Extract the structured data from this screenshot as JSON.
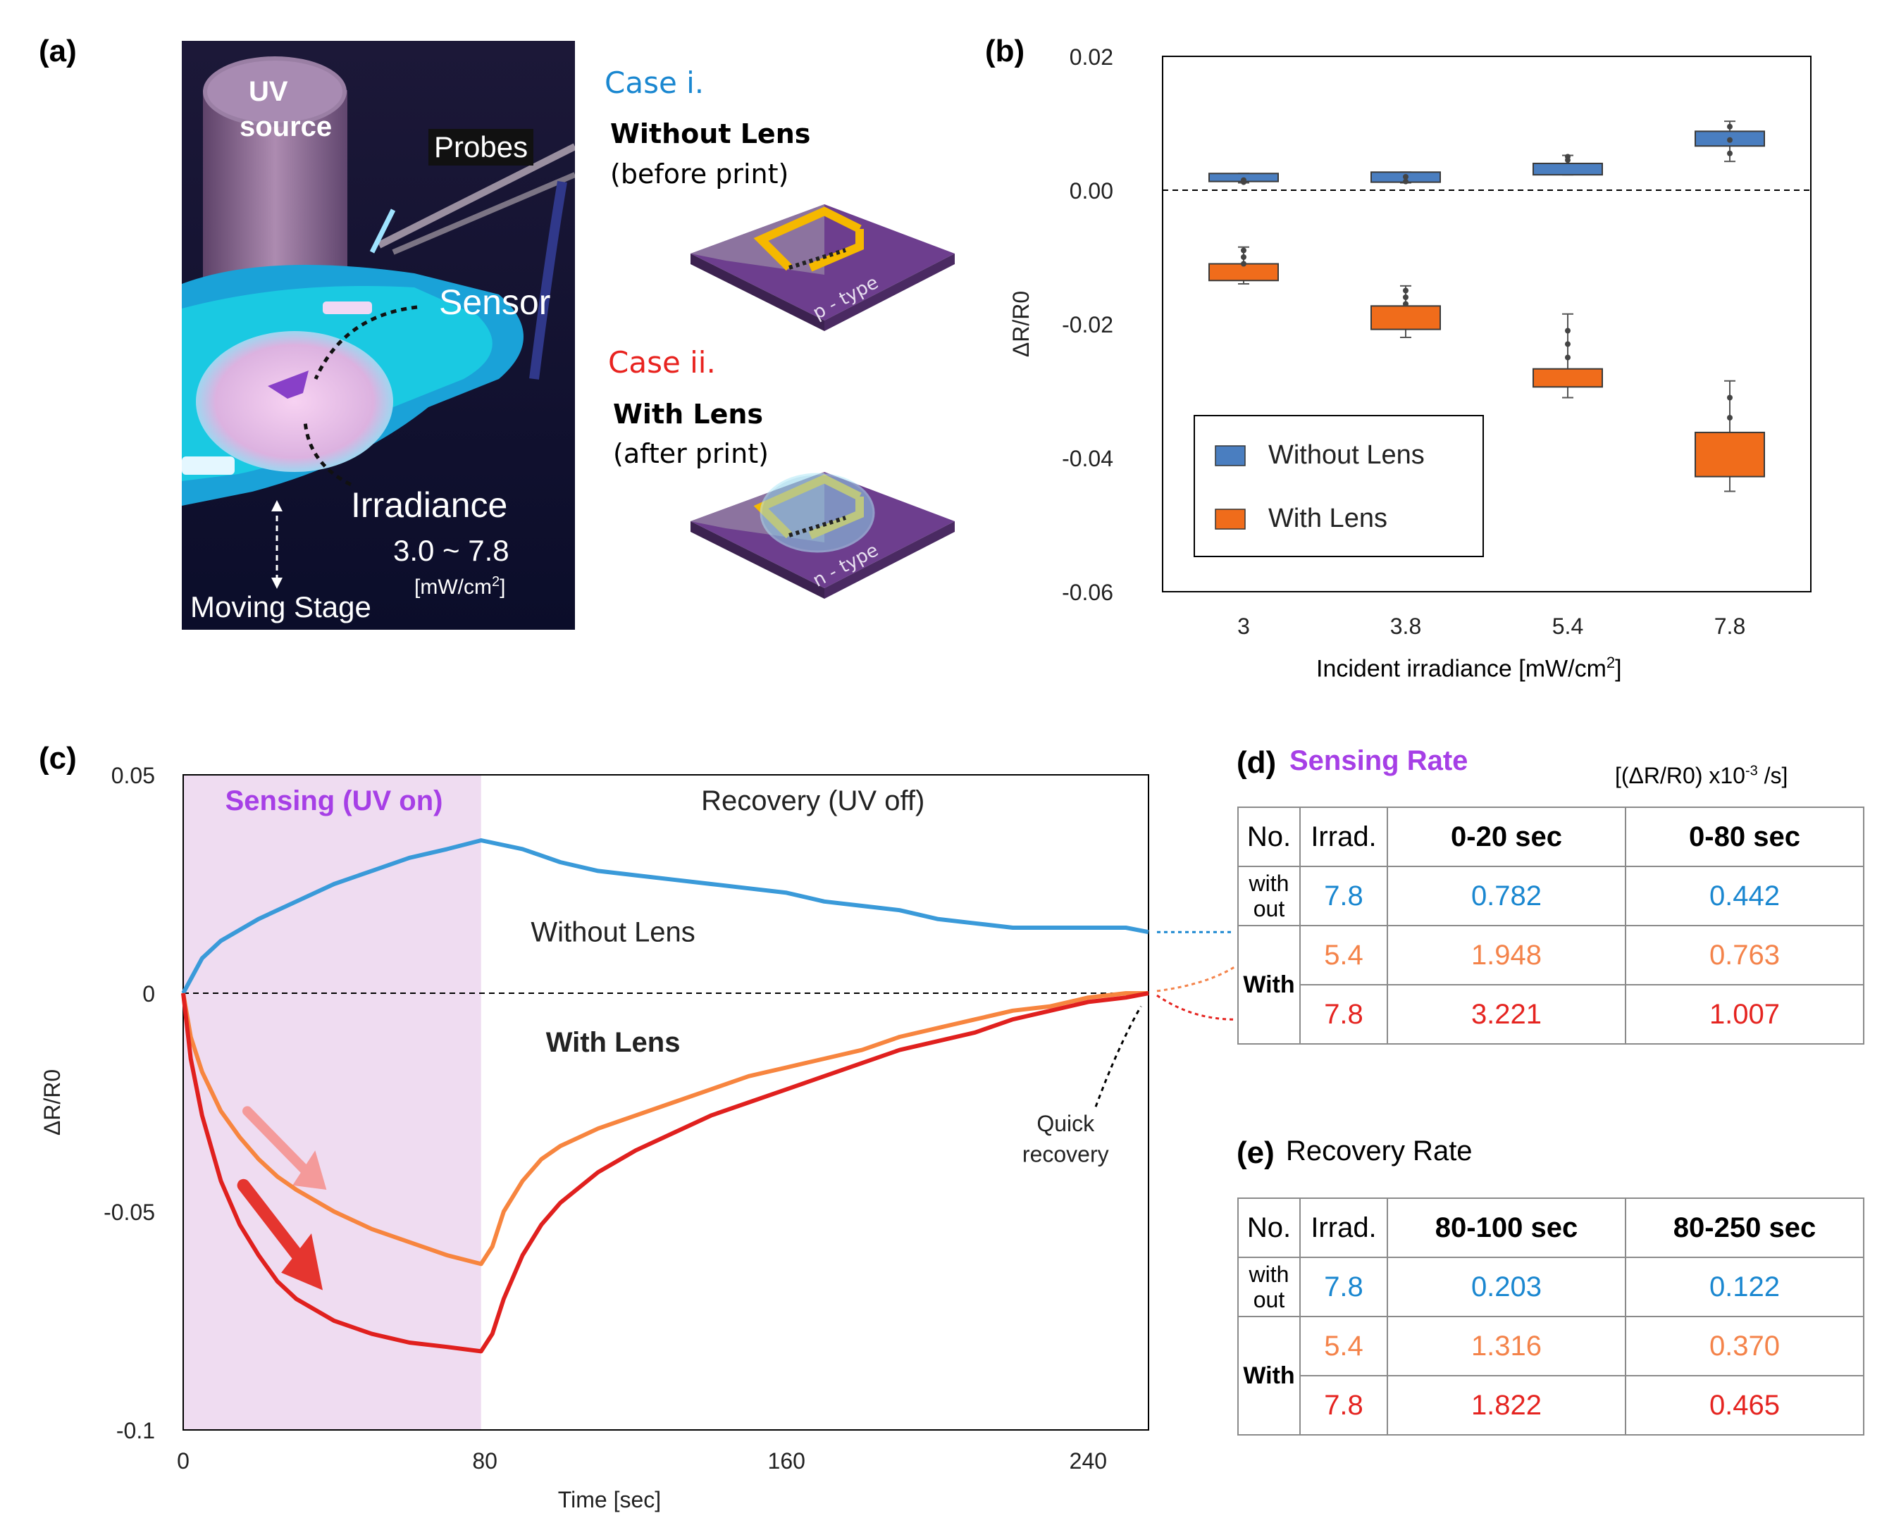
{
  "panels": {
    "a": "(a)",
    "b": "(b)",
    "c": "(c)",
    "d": "(d)",
    "e": "(e)"
  },
  "photo": {
    "uv_source_line1": "UV",
    "uv_source_line2": "source",
    "probes": "Probes",
    "sensor": "Sensor",
    "irradiance": "Irradiance",
    "irradiance_range": "3.0 ~ 7.8",
    "irradiance_unit_pre": "[mW/cm",
    "irradiance_unit_sup": "2",
    "irradiance_unit_post": "]",
    "moving_stage": "Moving Stage"
  },
  "cases": {
    "case1_title": "Case i.",
    "case1_bold": "Without Lens",
    "case1_note": "(before print)",
    "case1_chip": "p - type",
    "case2_title": "Case ii.",
    "case2_bold": "With Lens",
    "case2_note": "(after print)",
    "case2_chip": "n - type",
    "case1_color": "#1a87d0",
    "case2_color": "#e8231f"
  },
  "chart_data": [
    {
      "id": "b",
      "type": "box",
      "ylabel": "ΔR/R0",
      "xlabel_pre": "Incident irradiance [mW/cm",
      "xlabel_sup": "2",
      "xlabel_post": "]",
      "categories": [
        "3",
        "3.8",
        "5.4",
        "7.8"
      ],
      "ylim": [
        -0.06,
        0.02
      ],
      "yticks": [
        "0.02",
        "0.00",
        "-0.02",
        "-0.04",
        "-0.06"
      ],
      "yticks_values": [
        0.02,
        0.0,
        -0.02,
        -0.04,
        -0.06
      ],
      "legend": [
        "Without Lens",
        "With Lens"
      ],
      "series": [
        {
          "name": "Without Lens",
          "color": "#4a7ec0",
          "boxes": [
            {
              "q1": 0.0013,
              "q3": 0.0025,
              "min": 0.0011,
              "max": 0.0025,
              "points": [
                0.0012,
                0.0015
              ]
            },
            {
              "q1": 0.0012,
              "q3": 0.0027,
              "min": 0.0011,
              "max": 0.0027,
              "points": [
                0.0013,
                0.002
              ]
            },
            {
              "q1": 0.0023,
              "q3": 0.004,
              "min": 0.0023,
              "max": 0.0052,
              "points": [
                0.0045,
                0.005
              ]
            },
            {
              "q1": 0.0066,
              "q3": 0.0088,
              "min": 0.0043,
              "max": 0.0103,
              "points": [
                0.0055,
                0.0075,
                0.0095
              ]
            }
          ]
        },
        {
          "name": "With Lens",
          "color": "#f06c1b",
          "boxes": [
            {
              "q1": -0.0135,
              "q3": -0.011,
              "min": -0.014,
              "max": -0.0085,
              "points": [
                -0.009,
                -0.01,
                -0.011
              ]
            },
            {
              "q1": -0.0208,
              "q3": -0.0173,
              "min": -0.022,
              "max": -0.0143,
              "points": [
                -0.015,
                -0.016,
                -0.017
              ]
            },
            {
              "q1": -0.0294,
              "q3": -0.0267,
              "min": -0.031,
              "max": -0.0185,
              "points": [
                -0.021,
                -0.023,
                -0.025
              ]
            },
            {
              "q1": -0.0428,
              "q3": -0.0362,
              "min": -0.045,
              "max": -0.0285,
              "points": [
                -0.031,
                -0.034
              ]
            }
          ]
        }
      ]
    },
    {
      "id": "c",
      "type": "line",
      "xlabel": "Time [sec]",
      "ylabel": "ΔR/R0",
      "xlim": [
        0,
        256
      ],
      "ylim": [
        -0.1,
        0.05
      ],
      "xticks": [
        "0",
        "80",
        "160",
        "240"
      ],
      "xticks_values": [
        0,
        80,
        160,
        240
      ],
      "yticks": [
        "0.05",
        "0",
        "-0.05",
        "-0.1"
      ],
      "yticks_values": [
        0.05,
        0,
        -0.05,
        -0.1
      ],
      "shaded_region": [
        0,
        79
      ],
      "region_labels": {
        "sensing": "Sensing (UV on)",
        "recovery": "Recovery (UV off)"
      },
      "annotations": {
        "without": "Without Lens",
        "with": "With Lens",
        "quick1": "Quick",
        "quick2": "recovery"
      },
      "series": [
        {
          "name": "Without Lens",
          "color": "#3a9ad9",
          "x": [
            0,
            5,
            10,
            20,
            30,
            40,
            50,
            60,
            70,
            79,
            90,
            100,
            110,
            120,
            130,
            140,
            150,
            160,
            170,
            180,
            190,
            200,
            210,
            220,
            230,
            240,
            250,
            256
          ],
          "y": [
            0,
            0.008,
            0.012,
            0.017,
            0.021,
            0.025,
            0.028,
            0.031,
            0.033,
            0.035,
            0.033,
            0.03,
            0.028,
            0.027,
            0.026,
            0.025,
            0.024,
            0.023,
            0.021,
            0.02,
            0.019,
            0.017,
            0.016,
            0.015,
            0.015,
            0.015,
            0.015,
            0.014
          ]
        },
        {
          "name": "With Lens 5.4",
          "color": "#f7853f",
          "x": [
            0,
            2,
            5,
            10,
            15,
            20,
            25,
            30,
            40,
            50,
            60,
            70,
            79,
            82,
            85,
            90,
            95,
            100,
            110,
            120,
            130,
            140,
            150,
            160,
            170,
            180,
            190,
            200,
            210,
            220,
            230,
            240,
            250,
            256
          ],
          "y": [
            0,
            -0.01,
            -0.018,
            -0.027,
            -0.033,
            -0.038,
            -0.042,
            -0.045,
            -0.05,
            -0.054,
            -0.057,
            -0.06,
            -0.062,
            -0.058,
            -0.05,
            -0.043,
            -0.038,
            -0.035,
            -0.031,
            -0.028,
            -0.025,
            -0.022,
            -0.019,
            -0.017,
            -0.015,
            -0.013,
            -0.01,
            -0.008,
            -0.006,
            -0.004,
            -0.003,
            -0.001,
            0,
            0
          ]
        },
        {
          "name": "With Lens 7.8",
          "color": "#e0201e",
          "x": [
            0,
            2,
            5,
            10,
            15,
            20,
            25,
            30,
            40,
            50,
            60,
            70,
            79,
            82,
            85,
            90,
            95,
            100,
            110,
            120,
            130,
            140,
            150,
            160,
            170,
            180,
            190,
            200,
            210,
            220,
            230,
            240,
            250,
            256
          ],
          "y": [
            0,
            -0.015,
            -0.028,
            -0.043,
            -0.053,
            -0.06,
            -0.066,
            -0.07,
            -0.075,
            -0.078,
            -0.08,
            -0.081,
            -0.082,
            -0.078,
            -0.07,
            -0.06,
            -0.053,
            -0.048,
            -0.041,
            -0.036,
            -0.032,
            -0.028,
            -0.025,
            -0.022,
            -0.019,
            -0.016,
            -0.013,
            -0.011,
            -0.009,
            -0.006,
            -0.004,
            -0.002,
            -0.001,
            0
          ]
        }
      ]
    }
  ],
  "sensing_table": {
    "title_letter": "(d)",
    "title": "Sensing Rate",
    "unit": "[(ΔR/R0) x10",
    "unit_sup": "-3",
    "unit_post": " /s]",
    "headers": [
      "No.",
      "Irrad.",
      "0-20 sec",
      "0-80 sec"
    ],
    "without_label_1": "with",
    "without_label_2": "out",
    "with_label": "With",
    "rows": [
      {
        "irrad": "7.8",
        "v1": "0.782",
        "v2": "0.442"
      },
      {
        "irrad": "5.4",
        "v1": "1.948",
        "v2": "0.763"
      },
      {
        "irrad": "7.8",
        "v1": "3.221",
        "v2": "1.007"
      }
    ]
  },
  "recovery_table": {
    "title_letter": "(e)",
    "title": "Recovery Rate",
    "headers": [
      "No.",
      "Irrad.",
      "80-100 sec",
      "80-250 sec"
    ],
    "without_label_1": "with",
    "without_label_2": "out",
    "with_label": "With",
    "rows": [
      {
        "irrad": "7.8",
        "v1": "0.203",
        "v2": "0.122"
      },
      {
        "irrad": "5.4",
        "v1": "1.316",
        "v2": "0.370"
      },
      {
        "irrad": "7.8",
        "v1": "1.822",
        "v2": "0.465"
      }
    ]
  }
}
